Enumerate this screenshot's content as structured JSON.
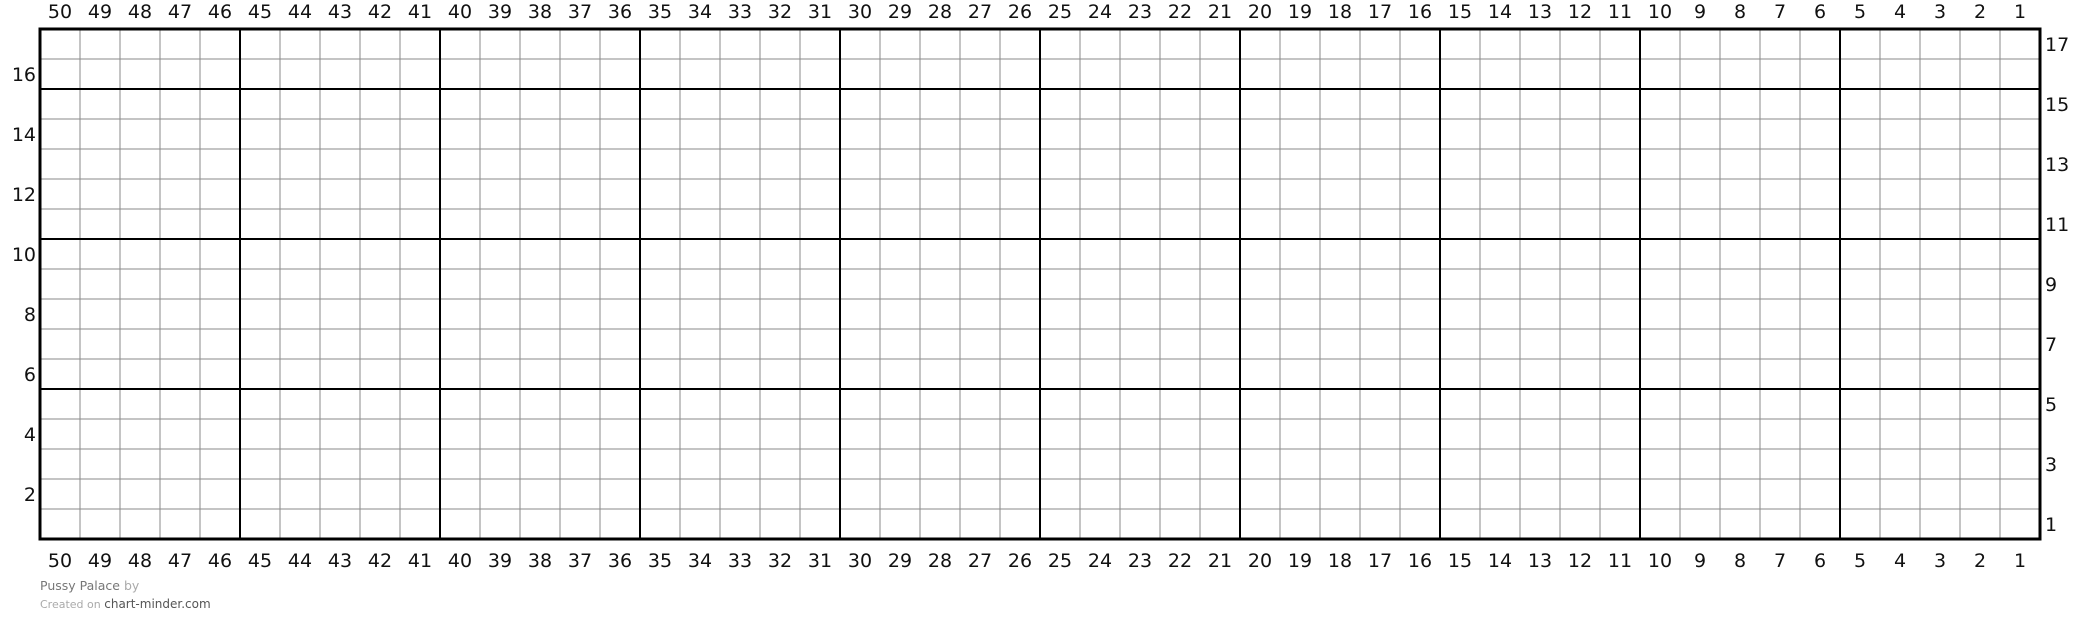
{
  "chart": {
    "columns": 50,
    "rows": 17,
    "major_every": 5,
    "column_labels_descending": true,
    "left_labels": "even rows",
    "right_labels": "odd rows",
    "minor_line_color": "#8a8a8a",
    "major_line_color": "#000000"
  },
  "footer": {
    "title": "Pussy Palace",
    "by": "by",
    "created_on": "Created on",
    "site": "chart-minder.com"
  }
}
